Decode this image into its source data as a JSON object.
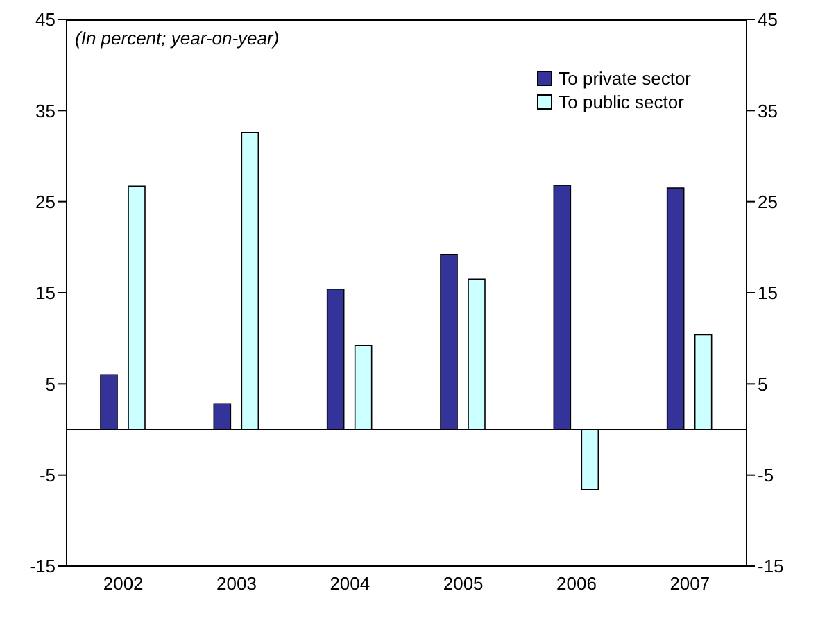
{
  "chart_data": {
    "type": "bar",
    "annotations": [
      "(In percent; year-on-year)"
    ],
    "categories": [
      "2002",
      "2003",
      "2004",
      "2005",
      "2006",
      "2007"
    ],
    "series": [
      {
        "name": "To private sector",
        "color": "#333399",
        "values": [
          6.0,
          2.8,
          15.4,
          19.2,
          26.8,
          26.5
        ]
      },
      {
        "name": "To public sector",
        "color": "#ccffff",
        "values": [
          26.7,
          32.6,
          9.2,
          16.5,
          -6.6,
          10.4
        ]
      }
    ],
    "ylim": [
      -15,
      45
    ],
    "yticks": [
      -15,
      -5,
      5,
      15,
      25,
      35,
      45
    ],
    "y2lim": [
      -15,
      45
    ],
    "y2ticks": [
      -15,
      -5,
      5,
      15,
      25,
      35,
      45
    ],
    "ref_lines": [
      {
        "axis": "y",
        "value": 0,
        "color": "#000000"
      }
    ],
    "grid": false,
    "legend": "top right"
  }
}
